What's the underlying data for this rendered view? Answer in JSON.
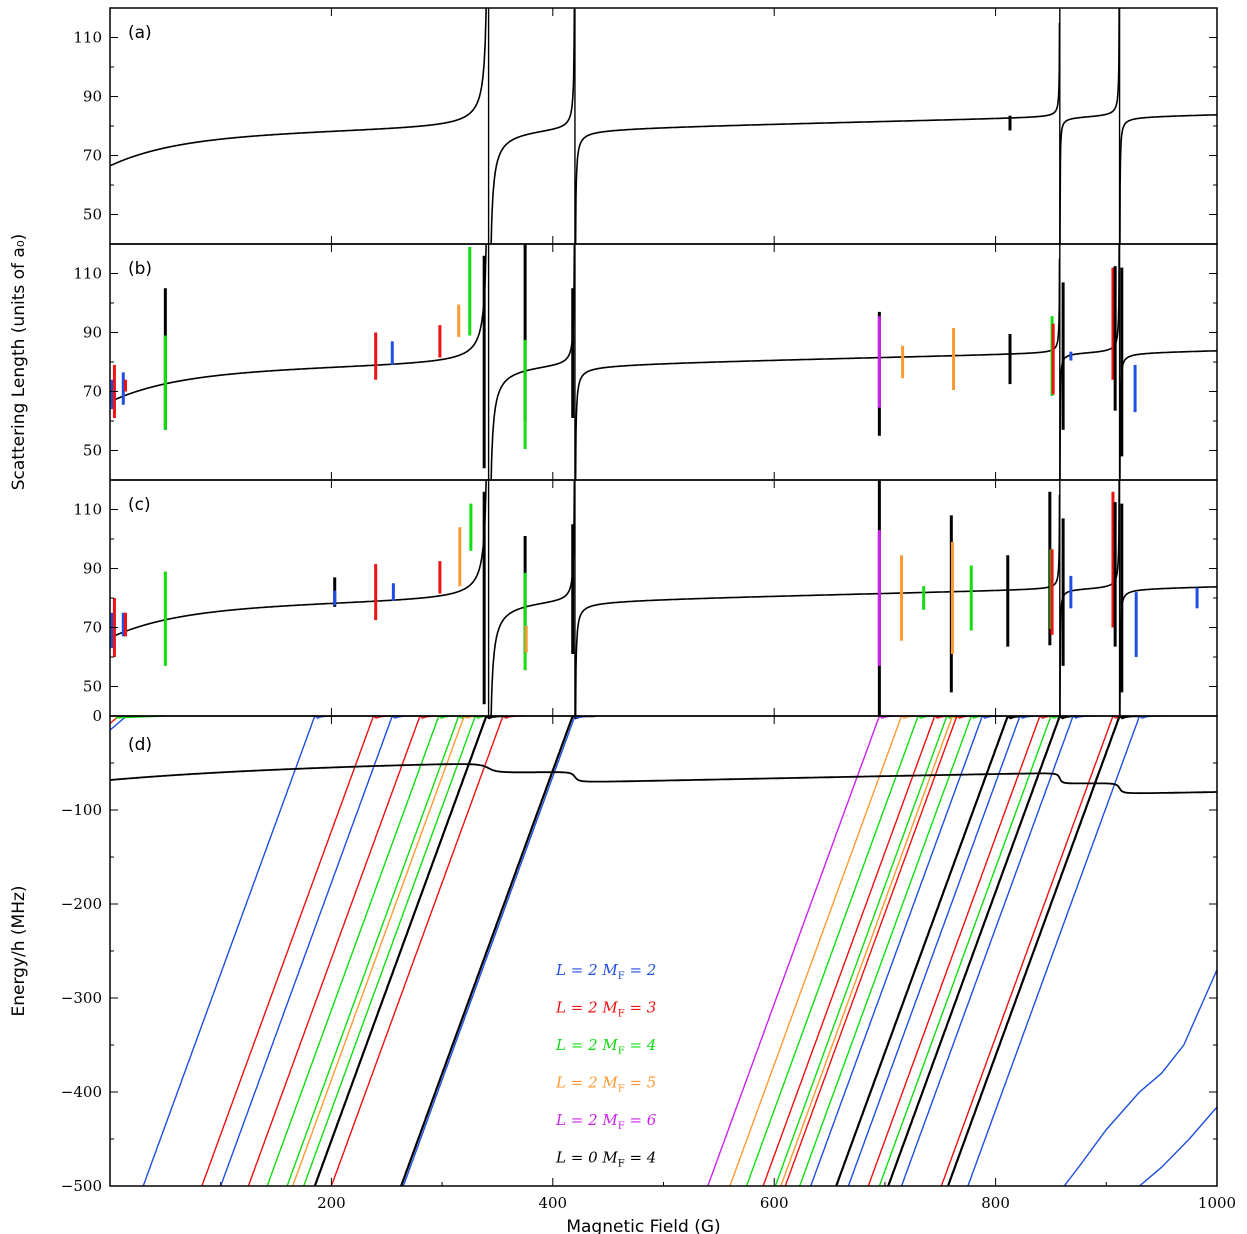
{
  "chart_data": {
    "type": "line",
    "xlabel": "Magnetic Field (G)",
    "xlim": [
      0,
      1000
    ],
    "x_ticks": [
      "200",
      "400",
      "600",
      "800",
      "1000"
    ],
    "shared_ylabel": "Scattering Length (units of a₀)",
    "colors": {
      "L2_MF2": "#1f4fe0",
      "L2_MF3": "#ee1111",
      "L2_MF4": "#11dd11",
      "L2_MF5": "#ff9933",
      "L2_MF6": "#cc22ee",
      "L0_MF4": "#000000"
    },
    "scattering": {
      "ylim": [
        40,
        120
      ],
      "y_ticks": [
        "50",
        "70",
        "90",
        "110"
      ],
      "background_a": 80,
      "poles": [
        342,
        420,
        858,
        912
      ],
      "narrow_features": [],
      "panels": [
        {
          "label": "(a)",
          "resonance_lines": [
            342,
            420,
            858,
            912
          ],
          "markers": [
            {
              "x": 813,
              "y": 81,
              "h": 5,
              "color": "L0_MF4"
            }
          ]
        },
        {
          "label": "(b)",
          "resonance_lines": [
            342,
            420,
            858,
            912
          ],
          "markers": [
            {
              "x": 2,
              "y": 69,
              "h": 10,
              "color": "L2_MF2"
            },
            {
              "x": 4,
              "y": 70,
              "h": 18,
              "color": "L2_MF3"
            },
            {
              "x": 12,
              "y": 71,
              "h": 11,
              "color": "L2_MF2"
            },
            {
              "x": 14,
              "y": 72,
              "h": 4,
              "color": "L2_MF3"
            },
            {
              "x": 50,
              "y": 81,
              "h": 48,
              "color": "L0_MF4"
            },
            {
              "x": 50,
              "y": 73,
              "h": 32,
              "color": "L2_MF4"
            },
            {
              "x": 240,
              "y": 82,
              "h": 16,
              "color": "L2_MF3"
            },
            {
              "x": 255,
              "y": 83,
              "h": 8,
              "color": "L2_MF2"
            },
            {
              "x": 298,
              "y": 87,
              "h": 11,
              "color": "L2_MF3"
            },
            {
              "x": 315,
              "y": 94,
              "h": 11,
              "color": "L2_MF5"
            },
            {
              "x": 325,
              "y": 104,
              "h": 30,
              "color": "L2_MF4"
            },
            {
              "x": 338,
              "y": 80,
              "h": 72,
              "color": "L0_MF4"
            },
            {
              "x": 375,
              "y": 90,
              "h": 60,
              "color": "L0_MF4"
            },
            {
              "x": 375,
              "y": 69,
              "h": 37,
              "color": "L2_MF4"
            },
            {
              "x": 418,
              "y": 83,
              "h": 44,
              "color": "L0_MF4"
            },
            {
              "x": 695,
              "y": 76,
              "h": 42,
              "color": "L0_MF4"
            },
            {
              "x": 695,
              "y": 80,
              "h": 31,
              "color": "L2_MF6"
            },
            {
              "x": 716,
              "y": 80,
              "h": 11,
              "color": "L2_MF5"
            },
            {
              "x": 762,
              "y": 81,
              "h": 21,
              "color": "L2_MF5"
            },
            {
              "x": 813,
              "y": 81,
              "h": 17,
              "color": "L0_MF4"
            },
            {
              "x": 851,
              "y": 82,
              "h": 27,
              "color": "L2_MF4"
            },
            {
              "x": 852,
              "y": 81,
              "h": 24,
              "color": "L2_MF3"
            },
            {
              "x": 861,
              "y": 82,
              "h": 50,
              "color": "L0_MF4"
            },
            {
              "x": 868,
              "y": 82,
              "h": 3,
              "color": "L2_MF2"
            },
            {
              "x": 906,
              "y": 93,
              "h": 38,
              "color": "L2_MF3"
            },
            {
              "x": 908,
              "y": 88,
              "h": 49,
              "color": "L0_MF4"
            },
            {
              "x": 914,
              "y": 80,
              "h": 64,
              "color": "L0_MF4"
            },
            {
              "x": 926,
              "y": 71,
              "h": 16,
              "color": "L2_MF2"
            }
          ]
        },
        {
          "label": "(c)",
          "resonance_lines": [
            342,
            420,
            858,
            912
          ],
          "markers": [
            {
              "x": 2,
              "y": 69,
              "h": 12,
              "color": "L2_MF2"
            },
            {
              "x": 4,
              "y": 70,
              "h": 20,
              "color": "L2_MF3"
            },
            {
              "x": 12,
              "y": 71,
              "h": 8,
              "color": "L2_MF2"
            },
            {
              "x": 14,
              "y": 71,
              "h": 8,
              "color": "L2_MF3"
            },
            {
              "x": 50,
              "y": 73,
              "h": 32,
              "color": "L2_MF4"
            },
            {
              "x": 203,
              "y": 82,
              "h": 10,
              "color": "L0_MF4"
            },
            {
              "x": 203,
              "y": 80,
              "h": 5,
              "color": "L2_MF2"
            },
            {
              "x": 240,
              "y": 82,
              "h": 19,
              "color": "L2_MF3"
            },
            {
              "x": 256,
              "y": 82,
              "h": 6,
              "color": "L2_MF2"
            },
            {
              "x": 298,
              "y": 87,
              "h": 11,
              "color": "L2_MF3"
            },
            {
              "x": 316,
              "y": 94,
              "h": 20,
              "color": "L2_MF5"
            },
            {
              "x": 326,
              "y": 104,
              "h": 16,
              "color": "L2_MF4"
            },
            {
              "x": 338,
              "y": 80,
              "h": 72,
              "color": "L0_MF4"
            },
            {
              "x": 375,
              "y": 81,
              "h": 40,
              "color": "L0_MF4"
            },
            {
              "x": 375,
              "y": 72,
              "h": 33,
              "color": "L2_MF4"
            },
            {
              "x": 376,
              "y": 66,
              "h": 9,
              "color": "L2_MF5"
            },
            {
              "x": 418,
              "y": 83,
              "h": 44,
              "color": "L0_MF4"
            },
            {
              "x": 695,
              "y": 80,
              "h": 80,
              "color": "L0_MF4"
            },
            {
              "x": 695,
              "y": 80,
              "h": 46,
              "color": "L2_MF6"
            },
            {
              "x": 715,
              "y": 80,
              "h": 29,
              "color": "L2_MF5"
            },
            {
              "x": 735,
              "y": 80,
              "h": 8,
              "color": "L2_MF4"
            },
            {
              "x": 760,
              "y": 78,
              "h": 60,
              "color": "L0_MF4"
            },
            {
              "x": 761,
              "y": 80,
              "h": 38,
              "color": "L2_MF5"
            },
            {
              "x": 778,
              "y": 80,
              "h": 22,
              "color": "L2_MF4"
            },
            {
              "x": 811,
              "y": 79,
              "h": 31,
              "color": "L0_MF4"
            },
            {
              "x": 849,
              "y": 90,
              "h": 52,
              "color": "L0_MF4"
            },
            {
              "x": 850,
              "y": 83,
              "h": 27,
              "color": "L2_MF4"
            },
            {
              "x": 851,
              "y": 82,
              "h": 29,
              "color": "L2_MF3"
            },
            {
              "x": 861,
              "y": 82,
              "h": 50,
              "color": "L0_MF4"
            },
            {
              "x": 868,
              "y": 82,
              "h": 11,
              "color": "L2_MF2"
            },
            {
              "x": 906,
              "y": 93,
              "h": 46,
              "color": "L2_MF3"
            },
            {
              "x": 908,
              "y": 88,
              "h": 49,
              "color": "L0_MF4"
            },
            {
              "x": 914,
              "y": 80,
              "h": 64,
              "color": "L0_MF4"
            },
            {
              "x": 927,
              "y": 71,
              "h": 22,
              "color": "L2_MF2"
            },
            {
              "x": 982,
              "y": 80,
              "h": 7,
              "color": "L2_MF2"
            }
          ]
        }
      ]
    },
    "energy": {
      "label": "(d)",
      "ylabel": "Energy/h (MHz)",
      "ylim": [
        -500,
        0
      ],
      "y_ticks": [
        "0",
        "−100",
        "−200",
        "−300",
        "−400",
        "−500"
      ],
      "bound_state": {
        "start": -68,
        "slope": 0.023
      },
      "threshold_states": [
        {
          "color": "L2_MF2",
          "x0": 185
        },
        {
          "color": "L2_MF3",
          "x0": 238
        },
        {
          "color": "L2_MF2",
          "x0": 255
        },
        {
          "color": "L2_MF3",
          "x0": 280
        },
        {
          "color": "L2_MF4",
          "x0": 297
        },
        {
          "color": "L2_MF4",
          "x0": 315
        },
        {
          "color": "L2_MF5",
          "x0": 320
        },
        {
          "color": "L2_MF4",
          "x0": 330
        },
        {
          "color": "L2_MF3",
          "x0": 355
        },
        {
          "color": "L0_MF4",
          "x0": 340
        },
        {
          "color": "L0_MF4",
          "x0": 418
        },
        {
          "color": "L2_MF2",
          "x0": 420
        },
        {
          "color": "L2_MF6",
          "x0": 695
        },
        {
          "color": "L2_MF5",
          "x0": 715
        },
        {
          "color": "L2_MF4",
          "x0": 730
        },
        {
          "color": "L2_MF3",
          "x0": 745
        },
        {
          "color": "L2_MF4",
          "x0": 756
        },
        {
          "color": "L2_MF5",
          "x0": 761
        },
        {
          "color": "L2_MF3",
          "x0": 765
        },
        {
          "color": "L2_MF4",
          "x0": 778
        },
        {
          "color": "L2_MF2",
          "x0": 788
        },
        {
          "color": "L0_MF4",
          "x0": 811
        },
        {
          "color": "L2_MF2",
          "x0": 822
        },
        {
          "color": "L2_MF3",
          "x0": 840
        },
        {
          "color": "L2_MF4",
          "x0": 850
        },
        {
          "color": "L0_MF4",
          "x0": 858
        },
        {
          "color": "L2_MF2",
          "x0": 870
        },
        {
          "color": "L2_MF3",
          "x0": 906
        },
        {
          "color": "L0_MF4",
          "x0": 912
        },
        {
          "color": "L2_MF2",
          "x0": 930
        }
      ],
      "bent_curves": [
        {
          "color": "L2_MF2",
          "points": [
            [
              862,
              -500
            ],
            [
              875,
              -480
            ],
            [
              900,
              -440
            ],
            [
              930,
              -400
            ],
            [
              950,
              -380
            ],
            [
              970,
              -350
            ],
            [
              985,
              -310
            ],
            [
              1000,
              -270
            ]
          ]
        },
        {
          "color": "L2_MF2",
          "points": [
            [
              930,
              -500
            ],
            [
              950,
              -480
            ],
            [
              975,
              -450
            ],
            [
              1000,
              -416
            ]
          ]
        }
      ],
      "legend": [
        {
          "text": "L = 2  M_F = 2",
          "color": "L2_MF2"
        },
        {
          "text": "L = 2  M_F = 3",
          "color": "L2_MF3"
        },
        {
          "text": "L = 2  M_F = 4",
          "color": "L2_MF4"
        },
        {
          "text": "L = 2  M_F = 5",
          "color": "L2_MF5"
        },
        {
          "text": "L = 2  M_F = 6",
          "color": "L2_MF6"
        },
        {
          "text": "L = 0  M_F = 4",
          "color": "L0_MF4"
        }
      ]
    }
  }
}
